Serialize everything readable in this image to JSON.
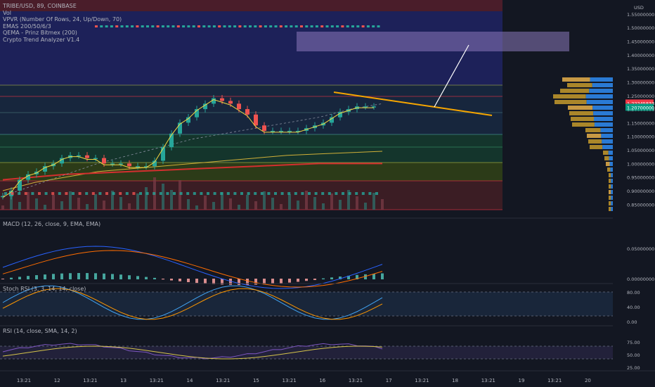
{
  "header": {
    "symbol": "TRIBE/USD, 89, COINBASE",
    "indicators": [
      "Vol",
      "VPVR (Number Of Rows, 24, Up/Down, 70)",
      "EMAS 200/50/6/3",
      "QEMA - Prinz Bitmex (200)",
      "Crypto Trend Analyzer V1.4"
    ]
  },
  "panes": {
    "macd_label": "MACD (12, 26, close, 9, EMA, EMA)",
    "stoch_label": "Stoch RSI (3, 3, 14, 14, close)",
    "rsi_label": "RSI (14, close, SMA, 14, 2)"
  },
  "chart_data": [
    {
      "type": "line",
      "title": "TRIBE/USD, 89, COINBASE",
      "currency": "USD",
      "yticks": [
        "1.55000000",
        "1.50000000",
        "1.45000000",
        "1.40000000",
        "1.35000000",
        "1.30000000",
        "1.25000000",
        "1.20000000",
        "1.15000000",
        "1.10000000",
        "1.05000000",
        "1.00000000",
        "0.95000000",
        "0.90000000",
        "0.85000000"
      ],
      "price_labels": [
        {
          "value": "1.22245833",
          "color": "#f23645"
        },
        {
          "value": "1.20700000",
          "color": "#089981"
        }
      ],
      "ylim": [
        0.83,
        1.56
      ],
      "x_ticks": [
        "13:21",
        "12",
        "13:21",
        "13",
        "13:21",
        "14",
        "13:21",
        "15",
        "13:21",
        "16",
        "13:21",
        "17",
        "13:21",
        "18",
        "13:21",
        "19",
        "13:21",
        "20"
      ],
      "close_approx": [
        0.88,
        0.9,
        0.94,
        0.96,
        0.97,
        0.99,
        1.0,
        1.02,
        1.03,
        1.03,
        1.02,
        1.02,
        1.0,
        1.0,
        1.0,
        0.99,
        0.99,
        0.99,
        1.01,
        1.06,
        1.11,
        1.15,
        1.17,
        1.2,
        1.22,
        1.24,
        1.23,
        1.22,
        1.2,
        1.18,
        1.14,
        1.12,
        1.12,
        1.12,
        1.12,
        1.12,
        1.13,
        1.14,
        1.15,
        1.17,
        1.19,
        1.2,
        1.21,
        1.21,
        1.21
      ]
    },
    {
      "type": "line",
      "title": "MACD (12, 26, close, 9, EMA, EMA)",
      "yticks": [
        "0.05000000",
        "0.00000000"
      ]
    },
    {
      "type": "line",
      "title": "Stoch RSI (3, 3, 14, 14, close)",
      "yticks": [
        "80.00",
        "40.00",
        "0.00"
      ]
    },
    {
      "type": "line",
      "title": "RSI (14, close, SMA, 14, 2)",
      "yticks": [
        "75.00",
        "50.00",
        "25.00"
      ]
    }
  ],
  "colors": {
    "background": "#131722",
    "up": "#26a69a",
    "down": "#ef5350",
    "accent_orange": "#f7a600",
    "macd": "#2962ff",
    "signal": "#ff6d00"
  }
}
